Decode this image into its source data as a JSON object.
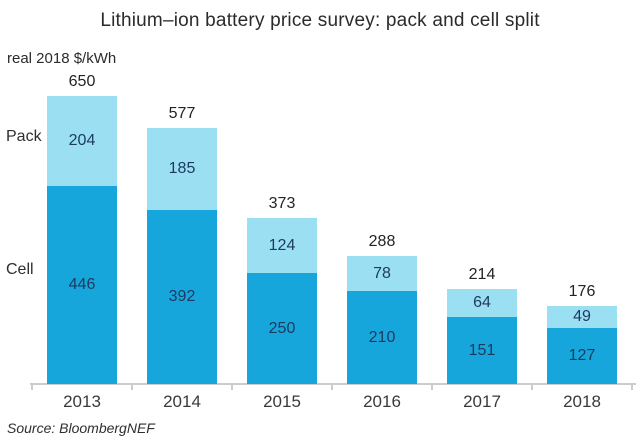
{
  "chart": {
    "title": "Lithium–ion battery price survey: pack and cell split",
    "unit_label": "real 2018 $/kWh",
    "legend": {
      "pack": "Pack",
      "cell": "Cell"
    },
    "source": "Source: BloombergNEF"
  },
  "colors": {
    "pack": "#9BDFF3",
    "cell": "#16A6DB",
    "value_text": "#1C3A5E",
    "axis_line": "#CCCCCC"
  },
  "chart_data": {
    "type": "bar",
    "stacked": true,
    "title": "Lithium–ion battery price survey: pack and cell split",
    "ylabel": "real 2018 $/kWh",
    "xlabel": "",
    "categories": [
      "2013",
      "2014",
      "2015",
      "2016",
      "2017",
      "2018"
    ],
    "series": [
      {
        "name": "Cell",
        "values": [
          446,
          392,
          250,
          210,
          151,
          127
        ]
      },
      {
        "name": "Pack",
        "values": [
          204,
          185,
          124,
          78,
          64,
          49
        ]
      }
    ],
    "totals": [
      650,
      577,
      373,
      288,
      214,
      176
    ],
    "ylim": [
      0,
      650
    ],
    "grid": false,
    "legend_position": "left",
    "source": "Source: BloombergNEF"
  }
}
